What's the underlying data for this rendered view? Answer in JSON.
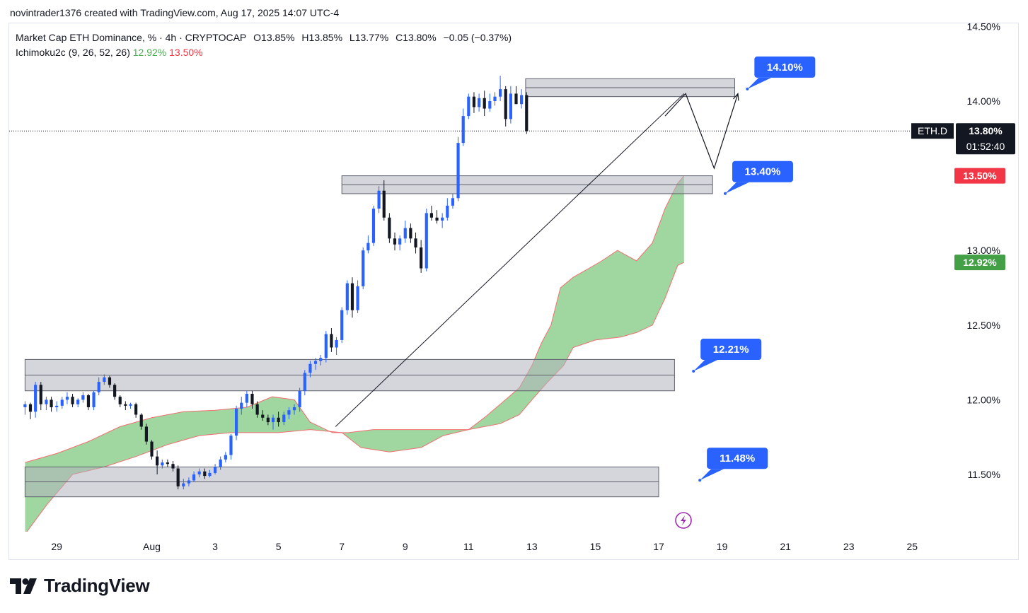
{
  "byline": "novintrader1376 created with TradingView.com, Aug 17, 2025 14:07 UTC-4",
  "legend": {
    "title": "Market Cap ETH Dominance, % · 4h · CRYPTOCAP",
    "o": "O13.85%",
    "h": "H13.85%",
    "l": "L13.77%",
    "c": "C13.80%",
    "chg": "−0.05 (−0.37%)",
    "ichimoku": "Ichimoku2c (9, 26, 52, 26)",
    "ich_a": "12.92%",
    "ich_b": "13.50%"
  },
  "brand": "TradingView",
  "colors": {
    "up": "#2962ff",
    "down": "#131722",
    "cloud": "#8fcf8f",
    "cloud_edge": "#f26f6f",
    "callout": "#2962ff",
    "price_tag": "#131722",
    "red_tag": "#f23645",
    "green_tag": "#43a047"
  },
  "chart_data": {
    "type": "candlestick",
    "symbol": "ETH.D",
    "timeframe": "4h",
    "y_ticks": [
      "14.50%",
      "14.00%",
      "13.00%",
      "12.50%",
      "12.00%",
      "11.50%"
    ],
    "y_tick_values": [
      14.5,
      14.0,
      13.0,
      12.5,
      12.0,
      11.5
    ],
    "ylim": [
      11.1,
      14.55
    ],
    "x_ticks": [
      "29",
      "Aug",
      "3",
      "5",
      "7",
      "9",
      "11",
      "13",
      "15",
      "17",
      "19",
      "21",
      "23",
      "25"
    ],
    "x_tick_days": [
      29,
      32,
      34,
      36,
      38,
      40,
      42,
      44,
      46,
      48,
      50,
      52,
      54,
      56
    ],
    "last_price": {
      "label": "ETH.D",
      "value": "13.80%",
      "countdown": "01:52:40",
      "y": 13.8
    },
    "ichimoku_tags": [
      {
        "value": "13.50%",
        "y": 13.5,
        "kind": "red"
      },
      {
        "value": "12.92%",
        "y": 12.92,
        "kind": "green"
      }
    ],
    "zones": [
      {
        "from": 14.03,
        "to": 14.15,
        "day_start": 43.8,
        "day_end": 50.4
      },
      {
        "from": 13.38,
        "to": 13.5,
        "day_start": 38.0,
        "day_end": 49.7
      },
      {
        "from": 12.06,
        "to": 12.27,
        "day_start": 28.0,
        "day_end": 48.5
      },
      {
        "from": 11.35,
        "to": 11.55,
        "day_start": 28.0,
        "day_end": 48.0
      }
    ],
    "callouts": [
      {
        "label": "14.10%",
        "y": 14.1,
        "day": 51.2
      },
      {
        "label": "13.40%",
        "y": 13.4,
        "day": 50.5
      },
      {
        "label": "12.21%",
        "y": 12.21,
        "day": 49.5
      },
      {
        "label": "11.48%",
        "y": 11.48,
        "day": 49.7
      }
    ],
    "trendline": [
      {
        "day": 37.8,
        "y": 11.82
      },
      {
        "day": 48.8,
        "y": 14.05
      }
    ],
    "projection": [
      {
        "day": 48.2,
        "y": 13.9
      },
      {
        "day": 48.85,
        "y": 14.05
      },
      {
        "day": 49.75,
        "y": 13.55
      },
      {
        "day": 50.5,
        "y": 14.05
      }
    ],
    "cloud_top": [
      [
        28,
        11.58
      ],
      [
        29,
        11.64
      ],
      [
        30,
        11.72
      ],
      [
        31,
        11.82
      ],
      [
        32,
        11.88
      ],
      [
        33,
        11.92
      ],
      [
        34,
        11.93
      ],
      [
        35,
        11.95
      ],
      [
        35.8,
        12.02
      ],
      [
        36.5,
        12.0
      ],
      [
        37,
        11.85
      ],
      [
        37.7,
        11.78
      ],
      [
        38.2,
        11.78
      ],
      [
        39,
        11.8
      ],
      [
        40,
        11.8
      ],
      [
        41,
        11.8
      ],
      [
        42,
        11.8
      ],
      [
        42.5,
        11.88
      ],
      [
        43,
        11.97
      ],
      [
        43.6,
        12.08
      ],
      [
        44,
        12.23
      ],
      [
        44.3,
        12.38
      ],
      [
        44.6,
        12.5
      ],
      [
        44.9,
        12.75
      ],
      [
        45.3,
        12.82
      ],
      [
        45.8,
        12.88
      ],
      [
        46.2,
        12.93
      ],
      [
        46.7,
        13.0
      ],
      [
        47.3,
        12.93
      ],
      [
        47.8,
        13.05
      ],
      [
        48.2,
        13.28
      ],
      [
        48.6,
        13.45
      ],
      [
        48.8,
        13.5
      ]
    ],
    "cloud_bottom": [
      [
        28,
        11.1
      ],
      [
        28.7,
        11.3
      ],
      [
        29.5,
        11.5
      ],
      [
        30.5,
        11.55
      ],
      [
        31.5,
        11.62
      ],
      [
        32.5,
        11.7
      ],
      [
        33.5,
        11.76
      ],
      [
        34.5,
        11.78
      ],
      [
        36,
        11.78
      ],
      [
        37,
        11.8
      ],
      [
        38,
        11.78
      ],
      [
        38.6,
        11.68
      ],
      [
        39.5,
        11.65
      ],
      [
        40.5,
        11.68
      ],
      [
        41.2,
        11.76
      ],
      [
        42,
        11.8
      ],
      [
        43,
        11.84
      ],
      [
        43.6,
        11.9
      ],
      [
        44,
        12.0
      ],
      [
        44.5,
        12.12
      ],
      [
        45,
        12.23
      ],
      [
        45.3,
        12.35
      ],
      [
        46,
        12.4
      ],
      [
        46.8,
        12.42
      ],
      [
        47.3,
        12.45
      ],
      [
        47.8,
        12.5
      ],
      [
        48.2,
        12.68
      ],
      [
        48.6,
        12.9
      ],
      [
        48.8,
        12.92
      ]
    ],
    "candles": [
      [
        28.0,
        11.95,
        11.99,
        11.9,
        11.97
      ],
      [
        28.17,
        11.97,
        11.98,
        11.87,
        11.92
      ],
      [
        28.33,
        11.92,
        12.12,
        11.88,
        12.1
      ],
      [
        28.5,
        12.1,
        12.12,
        11.93,
        11.97
      ],
      [
        28.67,
        11.97,
        12.02,
        11.93,
        12.0
      ],
      [
        28.83,
        12.0,
        12.02,
        11.92,
        11.95
      ],
      [
        29.0,
        11.95,
        11.99,
        11.92,
        11.96
      ],
      [
        29.17,
        11.96,
        12.02,
        11.94,
        12.0
      ],
      [
        29.33,
        12.0,
        12.05,
        11.97,
        12.02
      ],
      [
        29.5,
        12.02,
        12.04,
        11.95,
        11.97
      ],
      [
        29.67,
        11.97,
        12.01,
        11.95,
        12.0
      ],
      [
        29.83,
        12.0,
        12.05,
        11.98,
        12.03
      ],
      [
        30.0,
        12.03,
        12.04,
        11.93,
        11.95
      ],
      [
        30.17,
        11.95,
        12.06,
        11.93,
        12.05
      ],
      [
        30.33,
        12.05,
        12.15,
        12.03,
        12.12
      ],
      [
        30.5,
        12.12,
        12.17,
        12.1,
        12.15
      ],
      [
        30.67,
        12.15,
        12.16,
        12.08,
        12.1
      ],
      [
        30.83,
        12.1,
        12.11,
        12.0,
        12.02
      ],
      [
        31.0,
        12.02,
        12.03,
        11.95,
        11.97
      ],
      [
        31.17,
        11.97,
        11.99,
        11.93,
        11.96
      ],
      [
        31.33,
        11.96,
        11.98,
        11.94,
        11.97
      ],
      [
        31.5,
        11.97,
        11.98,
        11.88,
        11.9
      ],
      [
        31.67,
        11.9,
        11.91,
        11.8,
        11.82
      ],
      [
        31.83,
        11.82,
        11.84,
        11.7,
        11.72
      ],
      [
        32.0,
        11.72,
        11.73,
        11.6,
        11.62
      ],
      [
        32.17,
        11.62,
        11.66,
        11.5,
        11.56
      ],
      [
        32.33,
        11.56,
        11.6,
        11.54,
        11.58
      ],
      [
        32.5,
        11.58,
        11.6,
        11.55,
        11.57
      ],
      [
        32.67,
        11.57,
        11.59,
        11.52,
        11.54
      ],
      [
        32.83,
        11.54,
        11.56,
        11.4,
        11.42
      ],
      [
        33.0,
        11.42,
        11.47,
        11.4,
        11.44
      ],
      [
        33.17,
        11.44,
        11.48,
        11.42,
        11.46
      ],
      [
        33.33,
        11.46,
        11.52,
        11.45,
        11.5
      ],
      [
        33.5,
        11.5,
        11.54,
        11.48,
        11.52
      ],
      [
        33.67,
        11.52,
        11.54,
        11.47,
        11.49
      ],
      [
        33.83,
        11.49,
        11.53,
        11.48,
        11.51
      ],
      [
        34.0,
        11.51,
        11.57,
        11.5,
        11.55
      ],
      [
        34.17,
        11.55,
        11.62,
        11.53,
        11.6
      ],
      [
        34.33,
        11.6,
        11.65,
        11.58,
        11.63
      ],
      [
        34.5,
        11.63,
        11.77,
        11.6,
        11.76
      ],
      [
        34.67,
        11.76,
        11.96,
        11.73,
        11.94
      ],
      [
        34.83,
        11.94,
        12.02,
        11.9,
        11.98
      ],
      [
        35.0,
        11.98,
        12.06,
        11.95,
        12.04
      ],
      [
        35.17,
        12.04,
        12.06,
        11.94,
        11.97
      ],
      [
        35.33,
        11.97,
        11.99,
        11.88,
        11.9
      ],
      [
        35.5,
        11.9,
        11.93,
        11.86,
        11.88
      ],
      [
        35.67,
        11.88,
        11.9,
        11.83,
        11.85
      ],
      [
        35.83,
        11.85,
        11.9,
        11.8,
        11.88
      ],
      [
        36.0,
        11.88,
        11.92,
        11.82,
        11.85
      ],
      [
        36.17,
        11.85,
        11.92,
        11.83,
        11.9
      ],
      [
        36.33,
        11.9,
        11.95,
        11.87,
        11.93
      ],
      [
        36.5,
        11.93,
        11.97,
        11.9,
        11.95
      ],
      [
        36.67,
        11.95,
        12.08,
        11.92,
        12.06
      ],
      [
        36.83,
        12.06,
        12.2,
        12.03,
        12.18
      ],
      [
        37.0,
        12.18,
        12.26,
        12.15,
        12.24
      ],
      [
        37.17,
        12.24,
        12.28,
        12.2,
        12.26
      ],
      [
        37.33,
        12.26,
        12.3,
        12.23,
        12.28
      ],
      [
        37.5,
        12.28,
        12.46,
        12.25,
        12.44
      ],
      [
        37.67,
        12.44,
        12.48,
        12.32,
        12.35
      ],
      [
        37.83,
        12.35,
        12.42,
        12.3,
        12.4
      ],
      [
        38.0,
        12.4,
        12.62,
        12.38,
        12.6
      ],
      [
        38.17,
        12.6,
        12.8,
        12.57,
        12.78
      ],
      [
        38.33,
        12.78,
        12.82,
        12.55,
        12.6
      ],
      [
        38.5,
        12.6,
        12.8,
        12.58,
        12.76
      ],
      [
        38.67,
        12.76,
        13.02,
        12.74,
        13.0
      ],
      [
        38.83,
        13.0,
        13.1,
        12.98,
        13.05
      ],
      [
        39.0,
        13.05,
        13.3,
        13.03,
        13.28
      ],
      [
        39.17,
        13.28,
        13.43,
        13.25,
        13.4
      ],
      [
        39.33,
        13.4,
        13.47,
        13.2,
        13.22
      ],
      [
        39.5,
        13.22,
        13.25,
        13.05,
        13.08
      ],
      [
        39.67,
        13.08,
        13.12,
        13.0,
        13.04
      ],
      [
        39.83,
        13.04,
        13.1,
        13.0,
        13.08
      ],
      [
        40.0,
        13.08,
        13.2,
        13.05,
        13.15
      ],
      [
        40.17,
        13.15,
        13.18,
        13.05,
        13.08
      ],
      [
        40.33,
        13.08,
        13.12,
        12.98,
        13.02
      ],
      [
        40.5,
        13.02,
        13.07,
        12.85,
        12.88
      ],
      [
        40.67,
        12.88,
        13.28,
        12.86,
        13.25
      ],
      [
        40.83,
        13.25,
        13.3,
        13.2,
        13.22
      ],
      [
        41.0,
        13.22,
        13.27,
        13.18,
        13.2
      ],
      [
        41.17,
        13.2,
        13.25,
        13.15,
        13.22
      ],
      [
        41.33,
        13.22,
        13.35,
        13.2,
        13.3
      ],
      [
        41.5,
        13.3,
        13.38,
        13.28,
        13.35
      ],
      [
        41.67,
        13.35,
        13.76,
        13.33,
        13.72
      ],
      [
        41.83,
        13.72,
        13.95,
        13.7,
        13.9
      ],
      [
        42.0,
        13.9,
        14.05,
        13.88,
        14.03
      ],
      [
        42.17,
        14.03,
        14.06,
        13.92,
        13.96
      ],
      [
        42.33,
        13.96,
        14.05,
        13.93,
        14.02
      ],
      [
        42.5,
        14.02,
        14.07,
        13.9,
        13.95
      ],
      [
        42.67,
        13.95,
        14.05,
        13.93,
        14.0
      ],
      [
        42.83,
        14.0,
        14.06,
        13.97,
        14.03
      ],
      [
        43.0,
        14.03,
        14.17,
        14.0,
        14.08
      ],
      [
        43.17,
        14.08,
        14.1,
        13.83,
        13.88
      ],
      [
        43.33,
        13.88,
        14.1,
        13.85,
        14.05
      ],
      [
        43.5,
        14.05,
        14.1,
        13.98,
        13.98
      ],
      [
        43.67,
        13.98,
        14.08,
        13.95,
        14.04
      ],
      [
        43.83,
        14.04,
        14.06,
        13.78,
        13.8
      ]
    ]
  }
}
